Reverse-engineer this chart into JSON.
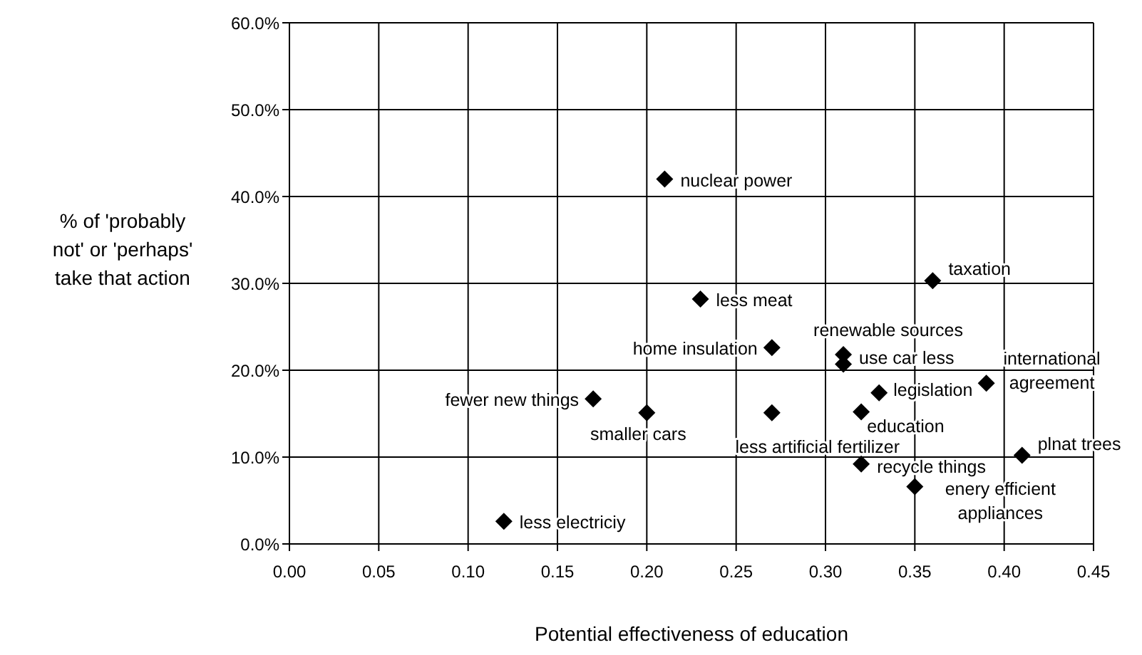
{
  "chart_data": {
    "type": "scatter",
    "xlabel": "Potential effectiveness of education",
    "ylabel": "% of 'probably not' or 'perhaps' take that action",
    "x": [
      0.21,
      0.23,
      0.36,
      0.27,
      0.31,
      0.31,
      0.17,
      0.33,
      0.39,
      0.2,
      0.27,
      0.32,
      0.32,
      0.41,
      0.35,
      0.12
    ],
    "series": [
      {
        "color": "#000000",
        "values": [
          42.0,
          28.2,
          30.3,
          22.6,
          21.8,
          20.7,
          16.7,
          17.4,
          18.5,
          15.1,
          15.1,
          15.2,
          9.2,
          10.2,
          6.6,
          2.6
        ]
      }
    ],
    "xlim": [
      0,
      0.45
    ],
    "xticks": [
      {
        "value": 0,
        "label": "0.00"
      },
      {
        "value": 0.05,
        "label": "0.05"
      },
      {
        "value": 0.1,
        "label": "0.10"
      },
      {
        "value": 0.15,
        "label": "0.15"
      },
      {
        "value": 0.2,
        "label": "0.20"
      },
      {
        "value": 0.25,
        "label": "0.25"
      },
      {
        "value": 0.3,
        "label": "0.30"
      },
      {
        "value": 0.35,
        "label": "0.35"
      },
      {
        "value": 0.4,
        "label": "0.40"
      },
      {
        "value": 0.45,
        "label": "0.45"
      }
    ],
    "ylim": [
      0,
      60
    ],
    "yticks": [
      {
        "value": 0,
        "label": "0.0%"
      },
      {
        "value": 10,
        "label": "10.0%"
      },
      {
        "value": 20,
        "label": "20.0%"
      },
      {
        "value": 30,
        "label": "30.0%"
      },
      {
        "value": 40,
        "label": "40.0%"
      },
      {
        "value": 50,
        "label": "50.0%"
      },
      {
        "value": 60,
        "label": "60.0%"
      }
    ],
    "grid": true,
    "legend": false,
    "marker": "diamond",
    "annotations": [
      {
        "text": "nuclear power",
        "x": 0.21,
        "y": 42.0
      },
      {
        "text": "less meat",
        "x": 0.23,
        "y": 28.2
      },
      {
        "text": "taxation",
        "x": 0.36,
        "y": 30.3
      },
      {
        "text": "home insulation",
        "x": 0.27,
        "y": 22.6
      },
      {
        "text": "renewable sources",
        "x": 0.31,
        "y": 21.8
      },
      {
        "text": "use car less",
        "x": 0.31,
        "y": 20.7
      },
      {
        "text": "fewer new things",
        "x": 0.17,
        "y": 16.7
      },
      {
        "text": "legislation",
        "x": 0.33,
        "y": 17.4
      },
      {
        "text": "international agreement",
        "x": 0.39,
        "y": 18.5
      },
      {
        "text": "smaller cars",
        "x": 0.2,
        "y": 15.1
      },
      {
        "text": "less artificial fertilizer",
        "x": 0.27,
        "y": 15.1
      },
      {
        "text": "education",
        "x": 0.32,
        "y": 15.2
      },
      {
        "text": "recycle things",
        "x": 0.32,
        "y": 9.2
      },
      {
        "text": "plnat trees",
        "x": 0.41,
        "y": 10.2
      },
      {
        "text": "enery efficient appliances",
        "x": 0.35,
        "y": 6.6
      },
      {
        "text": "less electriciy",
        "x": 0.12,
        "y": 2.6
      }
    ]
  }
}
